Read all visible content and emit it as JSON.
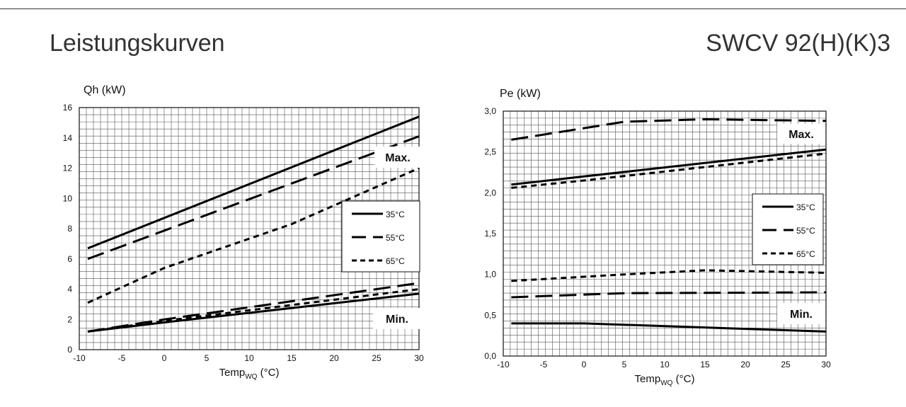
{
  "header": {
    "title": "Leistungskurven",
    "model": "SWCV 92(H)(K)3"
  },
  "chart_data": [
    {
      "type": "line",
      "ylabel": "Qh (kW)",
      "xlabel_main": "Temp",
      "xlabel_sub": "WQ",
      "xlabel_unit": " (°C)",
      "xlim": [
        -10,
        30
      ],
      "ylim": [
        0,
        16
      ],
      "x_ticks": [
        "-10",
        "-5",
        "0",
        "5",
        "10",
        "15",
        "20",
        "25",
        "30"
      ],
      "y_ticks": [
        "0",
        "2",
        "4",
        "6",
        "8",
        "10",
        "12",
        "14",
        "16"
      ],
      "grid": true,
      "annotations": [
        "Max.",
        "Min."
      ],
      "legend": {
        "position": "right",
        "entries": [
          {
            "label": "35°C",
            "style": "solid"
          },
          {
            "label": "55°C",
            "style": "longdash"
          },
          {
            "label": "65°C",
            "style": "shortdash"
          }
        ]
      },
      "series": [
        {
          "group": "Max.",
          "style": "solid",
          "x": [
            -9,
            30
          ],
          "y": [
            6.7,
            15.4
          ]
        },
        {
          "group": "Max.",
          "style": "longdash",
          "x": [
            -9,
            30
          ],
          "y": [
            6.0,
            14.1
          ]
        },
        {
          "group": "Max.",
          "style": "shortdash",
          "x": [
            -9,
            0,
            15,
            30
          ],
          "y": [
            3.1,
            5.4,
            8.3,
            12.0
          ]
        },
        {
          "group": "Min.",
          "style": "solid",
          "x": [
            -9,
            0,
            30
          ],
          "y": [
            1.2,
            1.8,
            3.7
          ]
        },
        {
          "group": "Min.",
          "style": "longdash",
          "x": [
            -9,
            0,
            30
          ],
          "y": [
            1.2,
            2.0,
            4.4
          ]
        },
        {
          "group": "Min.",
          "style": "shortdash",
          "x": [
            -9,
            0,
            30
          ],
          "y": [
            1.2,
            1.9,
            4.0
          ]
        }
      ]
    },
    {
      "type": "line",
      "ylabel": "Pe (kW)",
      "xlabel_main": "Temp",
      "xlabel_sub": "WQ",
      "xlabel_unit": " (°C)",
      "xlim": [
        -10,
        30
      ],
      "ylim": [
        0,
        3
      ],
      "x_ticks": [
        "-10",
        "-5",
        "0",
        "5",
        "10",
        "15",
        "20",
        "25",
        "30"
      ],
      "y_ticks": [
        "0,0",
        "0,5",
        "1,0",
        "1,5",
        "2,0",
        "2,5",
        "3,0"
      ],
      "grid": true,
      "annotations": [
        "Max.",
        "Min."
      ],
      "legend": {
        "position": "right",
        "entries": [
          {
            "label": "35°C",
            "style": "solid"
          },
          {
            "label": "55°C",
            "style": "longdash"
          },
          {
            "label": "65°C",
            "style": "shortdash"
          }
        ]
      },
      "series": [
        {
          "group": "Max.",
          "style": "longdash",
          "x": [
            -9,
            5,
            15,
            30
          ],
          "y": [
            2.65,
            2.87,
            2.9,
            2.88
          ]
        },
        {
          "group": "Max.",
          "style": "solid",
          "x": [
            -9,
            0,
            30
          ],
          "y": [
            2.1,
            2.2,
            2.53
          ]
        },
        {
          "group": "Max.",
          "style": "shortdash",
          "x": [
            -9,
            0,
            30
          ],
          "y": [
            2.06,
            2.15,
            2.48
          ]
        },
        {
          "group": "Min.",
          "style": "shortdash",
          "x": [
            -9,
            5,
            15,
            30
          ],
          "y": [
            0.92,
            1.0,
            1.05,
            1.02
          ]
        },
        {
          "group": "Min.",
          "style": "longdash",
          "x": [
            -9,
            5,
            30
          ],
          "y": [
            0.72,
            0.77,
            0.78
          ]
        },
        {
          "group": "Min.",
          "style": "solid",
          "x": [
            -9,
            0,
            30
          ],
          "y": [
            0.4,
            0.4,
            0.3
          ]
        }
      ]
    }
  ]
}
